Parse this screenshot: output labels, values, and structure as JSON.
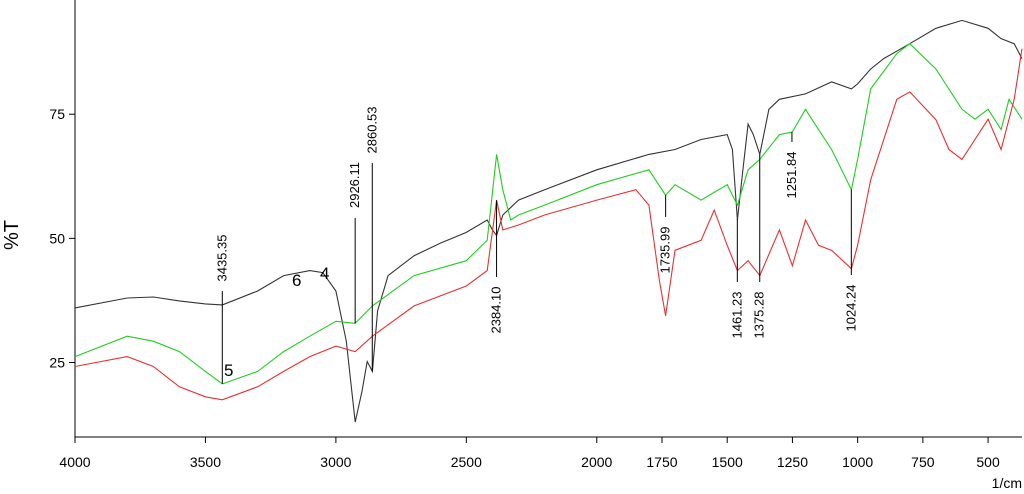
{
  "chart_data": {
    "type": "line",
    "xlabel": "1/cm",
    "ylabel": "%T",
    "xlim": [
      4000,
      370
    ],
    "ylim": [
      10,
      98
    ],
    "xticks": [
      4000,
      3500,
      3000,
      2500,
      2000,
      1750,
      1500,
      1250,
      1000,
      750,
      500
    ],
    "yticks": [
      25,
      50,
      75
    ],
    "x_black": [
      4000,
      3800,
      3700,
      3600,
      3500,
      3435,
      3300,
      3200,
      3100,
      3050,
      3000,
      2960,
      2926,
      2900,
      2880,
      2860,
      2840,
      2800,
      2700,
      2600,
      2500,
      2420,
      2400,
      2384,
      2360,
      2300,
      2200,
      2000,
      1800,
      1700,
      1600,
      1500,
      1480,
      1461,
      1440,
      1420,
      1400,
      1375,
      1340,
      1300,
      1200,
      1100,
      1024,
      1000,
      950,
      900,
      800,
      700,
      600,
      500,
      450,
      400,
      370
    ],
    "x_green": [
      4000,
      3800,
      3700,
      3600,
      3500,
      3435,
      3300,
      3200,
      3100,
      3000,
      2926,
      2860,
      2700,
      2500,
      2420,
      2384,
      2360,
      2330,
      2300,
      2200,
      2000,
      1800,
      1736,
      1700,
      1600,
      1500,
      1461,
      1420,
      1375,
      1300,
      1251,
      1200,
      1150,
      1100,
      1024,
      1000,
      950,
      850,
      800,
      700,
      600,
      550,
      500,
      450,
      420,
      370
    ],
    "x_red": [
      4000,
      3800,
      3700,
      3600,
      3500,
      3435,
      3300,
      3200,
      3100,
      3000,
      2926,
      2860,
      2700,
      2500,
      2420,
      2384,
      2360,
      2300,
      2200,
      2000,
      1850,
      1800,
      1760,
      1736,
      1700,
      1600,
      1550,
      1500,
      1461,
      1420,
      1375,
      1300,
      1250,
      1200,
      1150,
      1100,
      1024,
      1000,
      950,
      850,
      800,
      700,
      650,
      600,
      500,
      450,
      400,
      370
    ],
    "series": [
      {
        "name": "6",
        "color": "#333333",
        "x_key": "x_black",
        "values": [
          36.0,
          38.0,
          38.2,
          37.4,
          36.8,
          36.6,
          39.4,
          42.5,
          43.5,
          43.1,
          39.4,
          29.3,
          13.0,
          19.2,
          25.2,
          23.2,
          35.4,
          42.5,
          46.5,
          49.0,
          51.2,
          53.7,
          51.7,
          50.6,
          54.7,
          57.7,
          59.8,
          63.8,
          66.9,
          67.9,
          69.9,
          70.9,
          67.9,
          53.7,
          63.8,
          73.0,
          70.9,
          66.9,
          76.0,
          78.0,
          79.1,
          81.5,
          80.1,
          81.1,
          84.1,
          86.2,
          89.2,
          92.3,
          93.9,
          92.3,
          90.2,
          89.2,
          86.2
        ]
      },
      {
        "name": "4",
        "color": "#22cc22",
        "x_key": "x_green",
        "values": [
          26.2,
          30.3,
          29.3,
          27.2,
          23.2,
          20.7,
          23.2,
          27.2,
          30.3,
          33.3,
          32.9,
          36.4,
          42.5,
          45.5,
          49.6,
          66.9,
          59.8,
          53.7,
          54.7,
          56.7,
          60.8,
          63.8,
          58.7,
          60.8,
          57.7,
          60.8,
          56.7,
          63.8,
          65.9,
          70.9,
          71.4,
          76.0,
          71.9,
          67.9,
          59.8,
          65.9,
          80.1,
          87.2,
          89.2,
          84.1,
          76.0,
          74.0,
          76.0,
          71.9,
          78.0,
          74.0
        ]
      },
      {
        "name": "5",
        "color": "#e83030",
        "x_key": "x_red",
        "values": [
          24.2,
          26.2,
          24.2,
          20.1,
          18.1,
          17.5,
          20.1,
          23.2,
          26.2,
          28.3,
          27.2,
          30.3,
          36.4,
          40.4,
          43.5,
          57.7,
          51.7,
          52.7,
          54.7,
          57.7,
          59.8,
          56.7,
          41.5,
          34.4,
          47.6,
          49.6,
          55.7,
          48.6,
          43.5,
          45.5,
          42.5,
          51.7,
          44.5,
          53.7,
          48.6,
          47.6,
          43.9,
          48.6,
          61.8,
          78.0,
          79.5,
          73.9,
          67.9,
          65.9,
          74.0,
          67.9,
          78.0,
          88.2
        ]
      }
    ],
    "annotations": [
      {
        "value": 3435.35,
        "label": "3435.35"
      },
      {
        "value": 2926.11,
        "label": "2926.11"
      },
      {
        "value": 2860.53,
        "label": "2860.53"
      },
      {
        "value": 2384.1,
        "label": "2384.10"
      },
      {
        "value": 1735.99,
        "label": "1735.99"
      },
      {
        "value": 1461.23,
        "label": "1461.23"
      },
      {
        "value": 1375.28,
        "label": "1375.28"
      },
      {
        "value": 1251.84,
        "label": "1251.84"
      },
      {
        "value": 1024.24,
        "label": "1024.24"
      }
    ]
  }
}
